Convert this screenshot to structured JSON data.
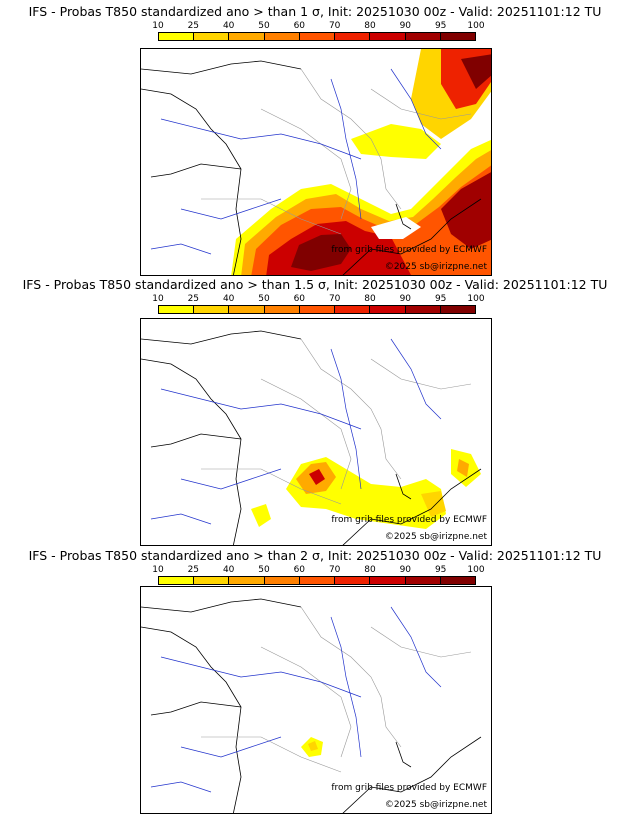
{
  "colors": {
    "scale": [
      "#ffff00",
      "#ffd500",
      "#ffaa00",
      "#ff8000",
      "#ff5500",
      "#ee2200",
      "#cc0000",
      "#a00000",
      "#800000"
    ]
  },
  "scale_ticks": [
    "10",
    "25",
    "40",
    "50",
    "60",
    "70",
    "80",
    "90",
    "95",
    "100"
  ],
  "credits": {
    "source": "from grib files provided by ECMWF",
    "copyright": "©2025 sb@irizpne.net"
  },
  "panels": [
    {
      "title": "IFS - Probas T850  standardized ano > than 1 σ, Init: 20251030 00z - Valid: 20251101:12 TU"
    },
    {
      "title": "IFS - Probas T850  standardized ano > than 1.5 σ, Init: 20251030 00z - Valid: 20251101:12 TU"
    },
    {
      "title": "IFS - Probas T850  standardized ano > than 2 σ, Init: 20251030 00z - Valid: 20251101:12 TU"
    }
  ]
}
